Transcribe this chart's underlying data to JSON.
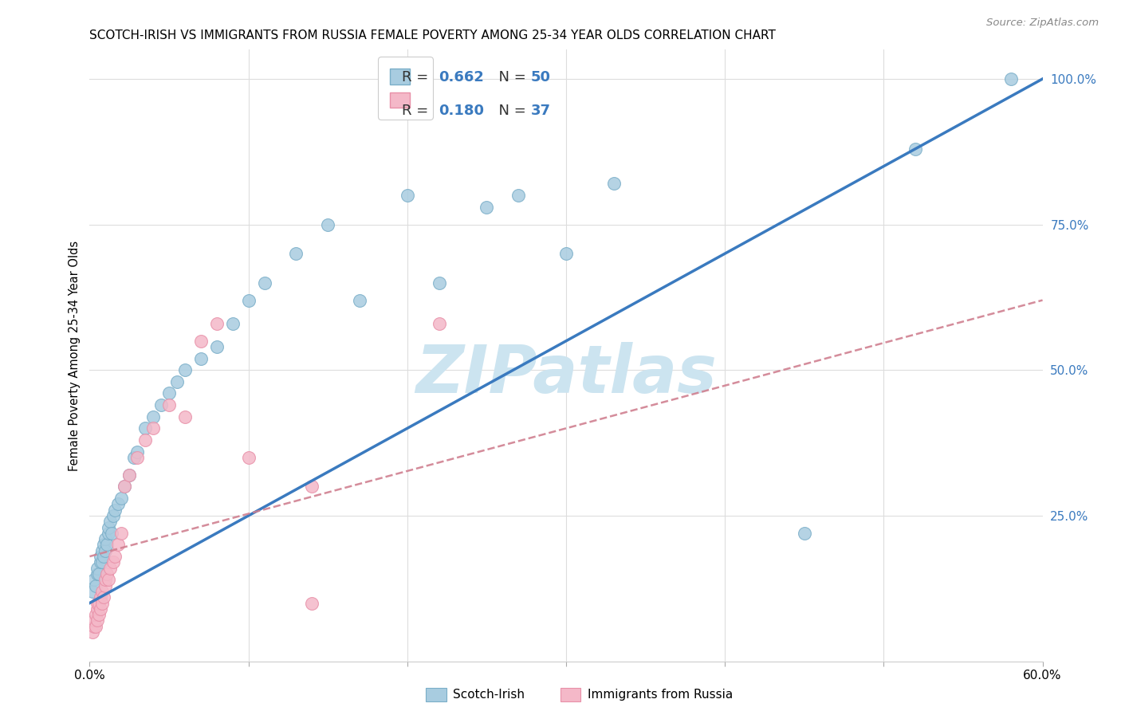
{
  "title": "SCOTCH-IRISH VS IMMIGRANTS FROM RUSSIA FEMALE POVERTY AMONG 25-34 YEAR OLDS CORRELATION CHART",
  "source": "Source: ZipAtlas.com",
  "ylabel": "Female Poverty Among 25-34 Year Olds",
  "xlim": [
    0.0,
    0.6
  ],
  "ylim": [
    0.0,
    1.05
  ],
  "yticks_right": [
    0.25,
    0.5,
    0.75,
    1.0
  ],
  "ytick_right_labels": [
    "25.0%",
    "50.0%",
    "75.0%",
    "100.0%"
  ],
  "blue_color": "#a8cce0",
  "blue_edge_color": "#7aaec8",
  "pink_color": "#f4b8c8",
  "pink_edge_color": "#e890a8",
  "blue_line_color": "#3a7abf",
  "pink_line_color": "#d08090",
  "grid_color": "#dddddd",
  "watermark_color": "#cce4f0",
  "legend_label1": "Scotch-Irish",
  "legend_label2": "Immigrants from Russia",
  "blue_x": [
    0.002,
    0.003,
    0.004,
    0.005,
    0.005,
    0.006,
    0.007,
    0.007,
    0.008,
    0.008,
    0.009,
    0.009,
    0.01,
    0.01,
    0.011,
    0.012,
    0.012,
    0.013,
    0.014,
    0.015,
    0.016,
    0.018,
    0.02,
    0.022,
    0.025,
    0.028,
    0.03,
    0.035,
    0.04,
    0.045,
    0.05,
    0.055,
    0.06,
    0.07,
    0.08,
    0.09,
    0.1,
    0.11,
    0.13,
    0.15,
    0.17,
    0.2,
    0.22,
    0.25,
    0.27,
    0.3,
    0.33,
    0.45,
    0.52,
    0.58
  ],
  "blue_y": [
    0.12,
    0.14,
    0.13,
    0.15,
    0.16,
    0.15,
    0.17,
    0.18,
    0.17,
    0.19,
    0.18,
    0.2,
    0.19,
    0.21,
    0.2,
    0.22,
    0.23,
    0.24,
    0.22,
    0.25,
    0.26,
    0.27,
    0.28,
    0.3,
    0.32,
    0.35,
    0.36,
    0.4,
    0.42,
    0.44,
    0.46,
    0.48,
    0.5,
    0.52,
    0.54,
    0.58,
    0.62,
    0.65,
    0.7,
    0.75,
    0.62,
    0.8,
    0.65,
    0.78,
    0.8,
    0.7,
    0.82,
    0.22,
    0.88,
    1.0
  ],
  "pink_x": [
    0.002,
    0.003,
    0.003,
    0.004,
    0.004,
    0.005,
    0.005,
    0.005,
    0.006,
    0.006,
    0.007,
    0.007,
    0.008,
    0.008,
    0.009,
    0.01,
    0.01,
    0.011,
    0.012,
    0.013,
    0.015,
    0.016,
    0.018,
    0.02,
    0.022,
    0.025,
    0.03,
    0.035,
    0.04,
    0.05,
    0.06,
    0.07,
    0.08,
    0.1,
    0.14,
    0.14,
    0.22
  ],
  "pink_y": [
    0.05,
    0.06,
    0.07,
    0.06,
    0.08,
    0.07,
    0.09,
    0.1,
    0.08,
    0.1,
    0.09,
    0.11,
    0.1,
    0.12,
    0.11,
    0.13,
    0.14,
    0.15,
    0.14,
    0.16,
    0.17,
    0.18,
    0.2,
    0.22,
    0.3,
    0.32,
    0.35,
    0.38,
    0.4,
    0.44,
    0.42,
    0.55,
    0.58,
    0.35,
    0.3,
    0.1,
    0.58
  ],
  "blue_line_x0": 0.0,
  "blue_line_x1": 0.6,
  "blue_line_y0": 0.1,
  "blue_line_y1": 1.0,
  "pink_line_x0": 0.0,
  "pink_line_x1": 0.6,
  "pink_line_y0": 0.18,
  "pink_line_y1": 0.62
}
